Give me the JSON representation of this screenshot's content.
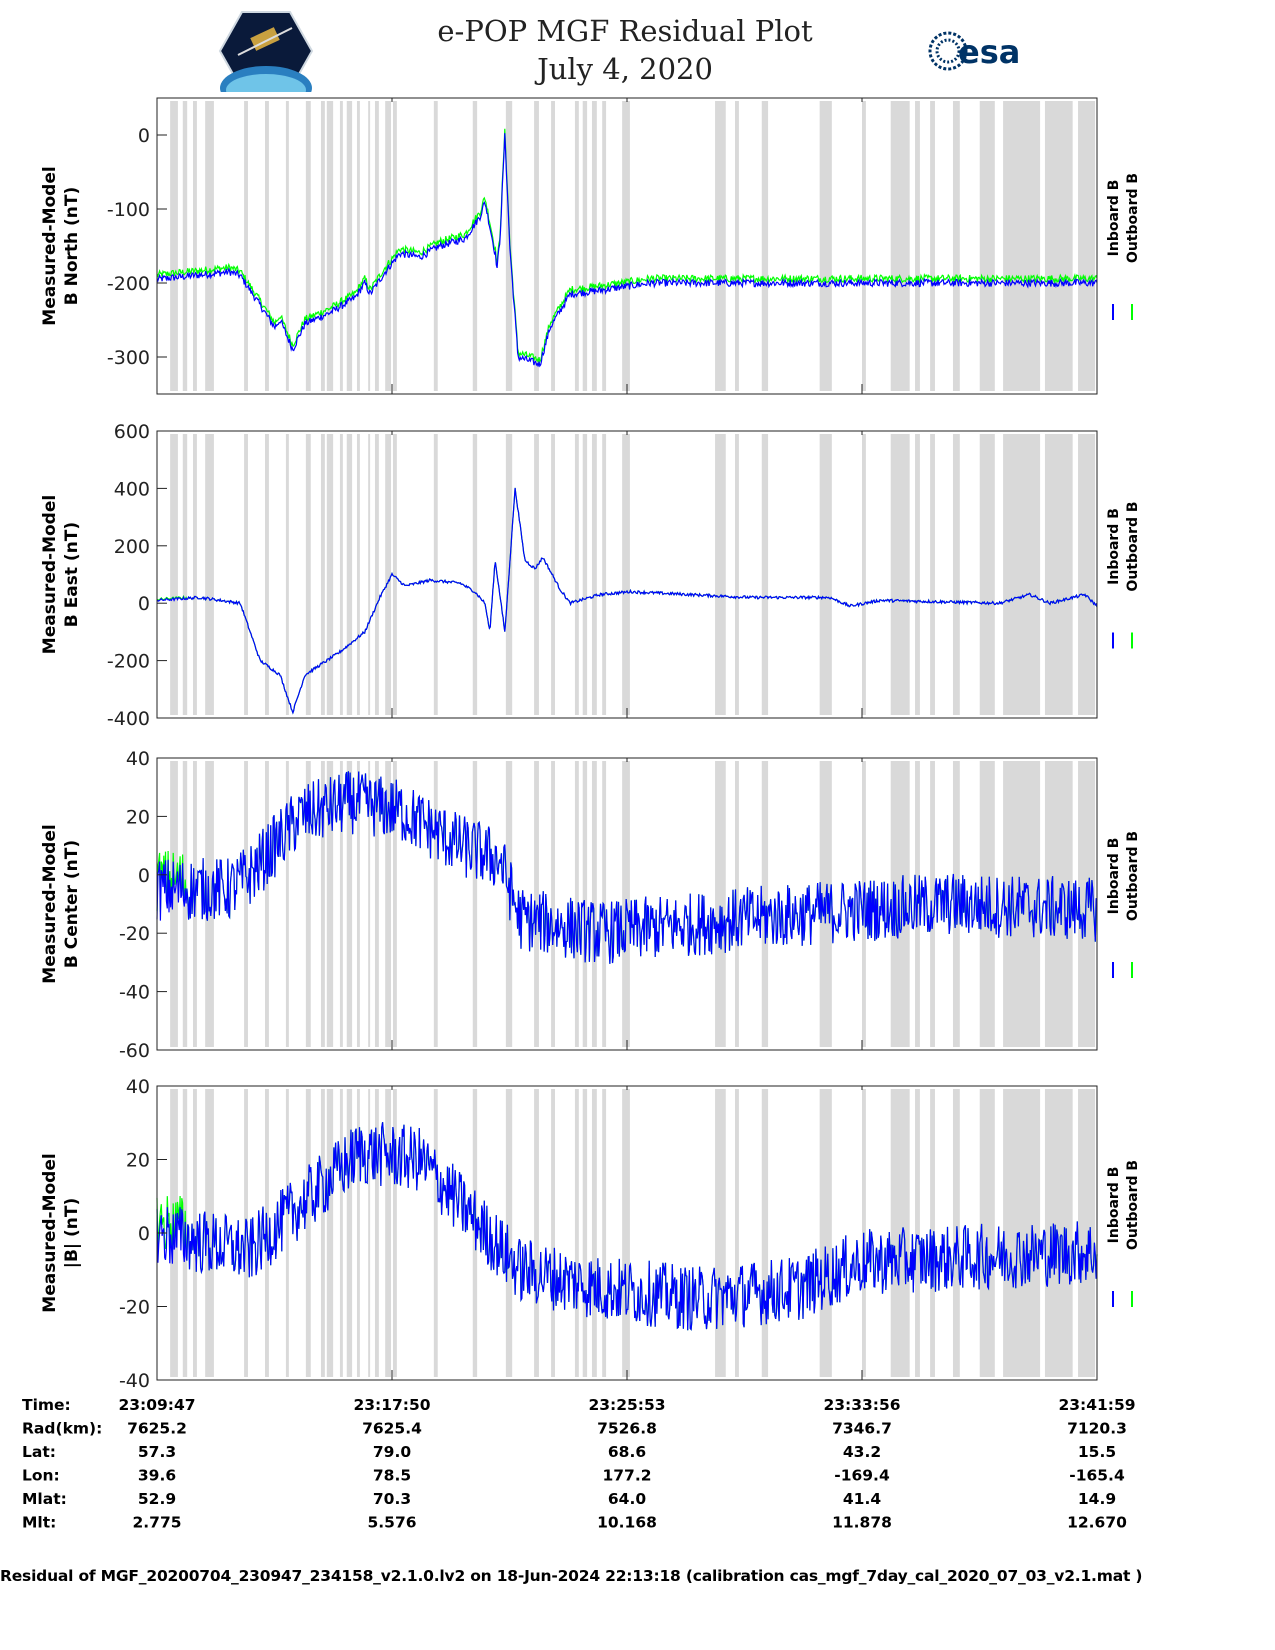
{
  "header": {
    "title": "e-POP MGF Residual Plot",
    "date": "July 4, 2020",
    "left_logo": "CASSIOPE",
    "right_logo": "esa"
  },
  "colors": {
    "inboard": "#0000ff",
    "outboard": "#00ff00",
    "gap": "#d9d9d9"
  },
  "chart_data": [
    {
      "type": "line",
      "ylabel": [
        "Measured-Model",
        "B North (nT)"
      ],
      "ylim": [
        -350,
        50
      ],
      "yticks": [
        0,
        -100,
        -200,
        -300
      ],
      "legend": [
        "Inboard B",
        "Outboard B"
      ],
      "legend_placement": "right",
      "noise": 5,
      "series": [
        {
          "name": "Inboard B",
          "points": [
            [
              0,
              -195
            ],
            [
              150,
              -185
            ],
            [
              171,
              -190
            ],
            [
              212,
              -230
            ],
            [
              242,
              -260
            ],
            [
              253,
              -250
            ],
            [
              279,
              -290
            ],
            [
              304,
              -255
            ],
            [
              356,
              -240
            ],
            [
              407,
              -220
            ],
            [
              427,
              -200
            ],
            [
              438,
              -215
            ],
            [
              469,
              -185
            ],
            [
              499,
              -160
            ],
            [
              540,
              -165
            ],
            [
              581,
              -150
            ],
            [
              633,
              -140
            ],
            [
              664,
              -110
            ],
            [
              674,
              -90
            ],
            [
              695,
              -160
            ],
            [
              699,
              -180
            ],
            [
              705,
              -140
            ],
            [
              715,
              0
            ],
            [
              725,
              -150
            ],
            [
              742,
              -300
            ],
            [
              787,
              -310
            ],
            [
              808,
              -260
            ],
            [
              849,
              -215
            ],
            [
              910,
              -210
            ],
            [
              1013,
              -200
            ],
            [
              1932,
              -200
            ]
          ]
        }
      ]
    },
    {
      "type": "line",
      "ylabel": [
        "Measured-Model",
        "B East (nT)"
      ],
      "ylim": [
        -400,
        600
      ],
      "yticks": [
        600,
        400,
        200,
        0,
        -200,
        -400
      ],
      "legend": [
        "Inboard B",
        "Outboard B"
      ],
      "legend_placement": "right",
      "noise": 5,
      "series": [
        {
          "name": "Inboard B",
          "points": [
            [
              0,
              10
            ],
            [
              88,
              20
            ],
            [
              171,
              0
            ],
            [
              212,
              -200
            ],
            [
              253,
              -250
            ],
            [
              279,
              -380
            ],
            [
              304,
              -250
            ],
            [
              376,
              -170
            ],
            [
              427,
              -100
            ],
            [
              458,
              20
            ],
            [
              483,
              100
            ],
            [
              510,
              60
            ],
            [
              561,
              80
            ],
            [
              623,
              70
            ],
            [
              653,
              40
            ],
            [
              674,
              0
            ],
            [
              684,
              -100
            ],
            [
              695,
              150
            ],
            [
              715,
              -100
            ],
            [
              736,
              400
            ],
            [
              756,
              150
            ],
            [
              777,
              120
            ],
            [
              793,
              160
            ],
            [
              828,
              50
            ],
            [
              849,
              0
            ],
            [
              910,
              30
            ],
            [
              972,
              40
            ],
            [
              1219,
              20
            ],
            [
              1362,
              20
            ],
            [
              1383,
              20
            ],
            [
              1424,
              -10
            ],
            [
              1486,
              10
            ],
            [
              1732,
              0
            ],
            [
              1794,
              30
            ],
            [
              1835,
              0
            ],
            [
              1907,
              30
            ],
            [
              1932,
              -10
            ]
          ]
        }
      ]
    },
    {
      "type": "line",
      "ylabel": [
        "Measured-Model",
        "B Center (nT)"
      ],
      "ylim": [
        -60,
        40
      ],
      "yticks": [
        40,
        20,
        0,
        -20,
        -40,
        -60
      ],
      "legend": [
        "Inboard B",
        "Outboard B"
      ],
      "legend_placement": "right",
      "noise": 11,
      "series": [
        {
          "name": "Inboard B",
          "points": [
            [
              0,
              -5
            ],
            [
              150,
              -5
            ],
            [
              191,
              0
            ],
            [
              294,
              20
            ],
            [
              397,
              25
            ],
            [
              499,
              22
            ],
            [
              623,
              10
            ],
            [
              705,
              5
            ],
            [
              746,
              -15
            ],
            [
              910,
              -20
            ],
            [
              1219,
              -15
            ],
            [
              1445,
              -12
            ],
            [
              1630,
              -10
            ],
            [
              1932,
              -12
            ]
          ]
        }
      ]
    },
    {
      "type": "line",
      "ylabel": [
        "Measured-Model",
        "|B| (nT)"
      ],
      "ylim": [
        -40,
        40
      ],
      "yticks": [
        40,
        20,
        0,
        -20,
        -40
      ],
      "legend": [
        "Inboard B",
        "Outboard B"
      ],
      "legend_placement": "right",
      "noise": 9,
      "series": [
        {
          "name": "Inboard B",
          "points": [
            [
              0,
              0
            ],
            [
              191,
              -5
            ],
            [
              273,
              5
            ],
            [
              417,
              22
            ],
            [
              540,
              20
            ],
            [
              643,
              5
            ],
            [
              746,
              -10
            ],
            [
              910,
              -15
            ],
            [
              1116,
              -18
            ],
            [
              1321,
              -15
            ],
            [
              1445,
              -8
            ],
            [
              1932,
              -5
            ]
          ]
        }
      ]
    }
  ],
  "x_range_seconds": [
    0,
    1932
  ],
  "gaps_seconds": [
    [
      27,
      43
    ],
    [
      53,
      62
    ],
    [
      74,
      82
    ],
    [
      99,
      117
    ],
    [
      179,
      187
    ],
    [
      222,
      230
    ],
    [
      265,
      271
    ],
    [
      306,
      316
    ],
    [
      337,
      345
    ],
    [
      349,
      362
    ],
    [
      376,
      382
    ],
    [
      390,
      401
    ],
    [
      411,
      417
    ],
    [
      434,
      438
    ],
    [
      448,
      456
    ],
    [
      469,
      481
    ],
    [
      485,
      493
    ],
    [
      569,
      577
    ],
    [
      649,
      658
    ],
    [
      717,
      730
    ],
    [
      775,
      785
    ],
    [
      810,
      818
    ],
    [
      859,
      867
    ],
    [
      875,
      884
    ],
    [
      894,
      904
    ],
    [
      915,
      923
    ],
    [
      956,
      972
    ],
    [
      1147,
      1169
    ],
    [
      1188,
      1196
    ],
    [
      1243,
      1256
    ],
    [
      1362,
      1387
    ],
    [
      1449,
      1457
    ],
    [
      1508,
      1547
    ],
    [
      1558,
      1568
    ],
    [
      1589,
      1599
    ],
    [
      1636,
      1650
    ],
    [
      1691,
      1722
    ],
    [
      1739,
      1815
    ],
    [
      1825,
      1882
    ],
    [
      1893,
      1928
    ]
  ],
  "ephemeris": {
    "tick_seconds": [
      0,
      483,
      966,
      1449,
      1932
    ],
    "rows": [
      {
        "label": "Time:",
        "values": [
          "23:09:47",
          "23:17:50",
          "23:25:53",
          "23:33:56",
          "23:41:59"
        ]
      },
      {
        "label": "Rad(km):",
        "values": [
          "7625.2",
          "7625.4",
          "7526.8",
          "7346.7",
          "7120.3"
        ]
      },
      {
        "label": "Lat:",
        "values": [
          "57.3",
          "79.0",
          "68.6",
          "43.2",
          "15.5"
        ]
      },
      {
        "label": "Lon:",
        "values": [
          "39.6",
          "78.5",
          "177.2",
          "-169.4",
          "-165.4"
        ]
      },
      {
        "label": "Mlat:",
        "values": [
          "52.9",
          "70.3",
          "64.0",
          "41.4",
          "14.9"
        ]
      },
      {
        "label": "Mlt:",
        "values": [
          "2.775",
          "5.576",
          "10.168",
          "11.878",
          "12.670"
        ]
      }
    ]
  },
  "footer": "Residual of MGF_20200704_230947_234158_v2.1.0.lv2 on 18-Jun-2024 22:13:18 (calibration cas_mgf_7day_cal_2020_07_03_v2.1.mat )"
}
